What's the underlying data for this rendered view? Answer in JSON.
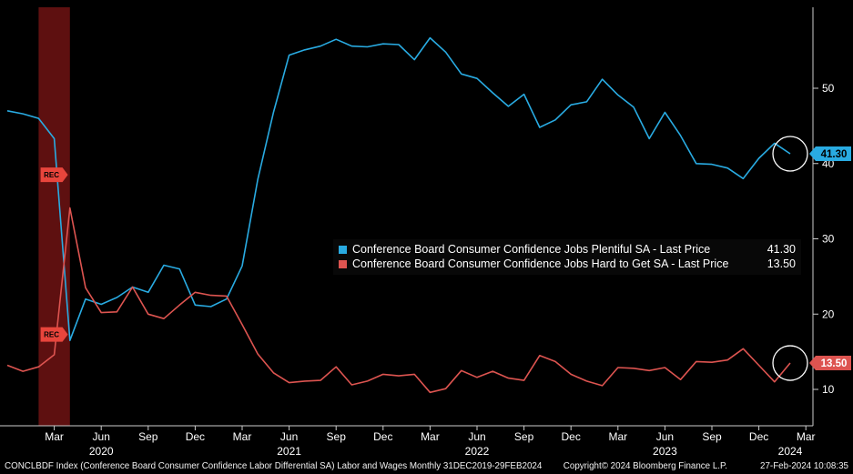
{
  "window": {
    "background": "#000000",
    "axis_color": "#cccccc",
    "label_color": "#ffffff"
  },
  "footer": {
    "left": "CONCLBDF Index (Conference Board Consumer Confidence Labor Differential SA) Labor and Wages  Monthly 31DEC2019-29FEB2024",
    "copyright": "Copyright© 2024 Bloomberg Finance L.P.",
    "timestamp": "27-Feb-2024 10:08:35"
  },
  "chart_data": {
    "type": "line",
    "title": "",
    "frequency": "monthly",
    "x_range": "31DEC2019 - 29FEB2024",
    "grid": false,
    "legend_position": "center",
    "y_axis_side": "right",
    "y_ticks": [
      10,
      20,
      30,
      40,
      50
    ],
    "ylim": [
      5.2,
      60.8
    ],
    "x_months": [
      "2019-12",
      "2020-01",
      "2020-02",
      "2020-03",
      "2020-04",
      "2020-05",
      "2020-06",
      "2020-07",
      "2020-08",
      "2020-09",
      "2020-10",
      "2020-11",
      "2020-12",
      "2021-01",
      "2021-02",
      "2021-03",
      "2021-04",
      "2021-05",
      "2021-06",
      "2021-07",
      "2021-08",
      "2021-09",
      "2021-10",
      "2021-11",
      "2021-12",
      "2022-01",
      "2022-02",
      "2022-03",
      "2022-04",
      "2022-05",
      "2022-06",
      "2022-07",
      "2022-08",
      "2022-09",
      "2022-10",
      "2022-11",
      "2022-12",
      "2023-01",
      "2023-02",
      "2023-03",
      "2023-04",
      "2023-05",
      "2023-06",
      "2023-07",
      "2023-08",
      "2023-09",
      "2023-10",
      "2023-11",
      "2023-12",
      "2024-01",
      "2024-02"
    ],
    "x_ticks": [
      {
        "index": 3,
        "label": "Mar"
      },
      {
        "index": 6,
        "label": "Jun"
      },
      {
        "index": 9,
        "label": "Sep"
      },
      {
        "index": 12,
        "label": "Dec"
      },
      {
        "index": 15,
        "label": "Mar"
      },
      {
        "index": 18,
        "label": "Jun"
      },
      {
        "index": 21,
        "label": "Sep"
      },
      {
        "index": 24,
        "label": "Dec"
      },
      {
        "index": 27,
        "label": "Mar"
      },
      {
        "index": 30,
        "label": "Jun"
      },
      {
        "index": 33,
        "label": "Sep"
      },
      {
        "index": 36,
        "label": "Dec"
      },
      {
        "index": 39,
        "label": "Mar"
      },
      {
        "index": 42,
        "label": "Jun"
      },
      {
        "index": 45,
        "label": "Sep"
      },
      {
        "index": 48,
        "label": "Dec"
      },
      {
        "index": 51,
        "label": "Mar"
      }
    ],
    "year_ticks": [
      {
        "index": 6,
        "label": "2020"
      },
      {
        "index": 18,
        "label": "2021"
      },
      {
        "index": 30,
        "label": "2022"
      },
      {
        "index": 42,
        "label": "2023"
      },
      {
        "index": 50,
        "label": "2024"
      }
    ],
    "series": [
      {
        "name": "Conference Board Consumer Confidence Jobs Plentiful SA - Last Price",
        "last_price": "41.30",
        "color": "#29abe2",
        "badge_text_color": "#000000",
        "values": [
          47.0,
          46.6,
          46.0,
          43.3,
          16.5,
          22.0,
          21.3,
          22.2,
          23.6,
          22.9,
          26.5,
          26.0,
          21.2,
          21.0,
          22.0,
          26.4,
          37.9,
          46.8,
          54.4,
          55.1,
          55.6,
          56.5,
          55.6,
          55.5,
          55.9,
          55.8,
          53.8,
          56.7,
          54.8,
          51.9,
          51.3,
          49.4,
          47.6,
          49.2,
          44.8,
          45.8,
          47.8,
          48.2,
          51.2,
          49.1,
          47.5,
          43.3,
          46.8,
          43.7,
          40.0,
          39.9,
          39.4,
          38.0,
          40.7,
          42.7,
          41.3
        ]
      },
      {
        "name": "Conference Board Consumer Confidence Jobs Hard to Get SA - Last Price",
        "last_price": "13.50",
        "color": "#dd5450",
        "badge_text_color": "#ffffff",
        "values": [
          13.2,
          12.4,
          13.0,
          14.6,
          34.1,
          23.5,
          20.2,
          20.3,
          23.6,
          20.0,
          19.4,
          21.2,
          22.9,
          22.5,
          22.4,
          18.6,
          14.7,
          12.2,
          10.9,
          11.1,
          11.2,
          13.0,
          10.6,
          11.1,
          12.0,
          11.8,
          12.0,
          9.6,
          10.1,
          12.5,
          11.6,
          12.4,
          11.5,
          11.2,
          14.5,
          13.7,
          12.0,
          11.1,
          10.5,
          12.9,
          12.8,
          12.5,
          12.9,
          11.3,
          13.7,
          13.6,
          13.9,
          15.4,
          13.2,
          11.0,
          13.5
        ]
      }
    ],
    "recession": {
      "band_start_index": 2,
      "band_end_index": 4,
      "band_color": "#5e1010",
      "marker_index": 3,
      "marker_color": "#e8453c",
      "markers": [
        {
          "label": "REC",
          "value": 38.5
        },
        {
          "label": "REC",
          "value": 17.3
        }
      ]
    }
  }
}
